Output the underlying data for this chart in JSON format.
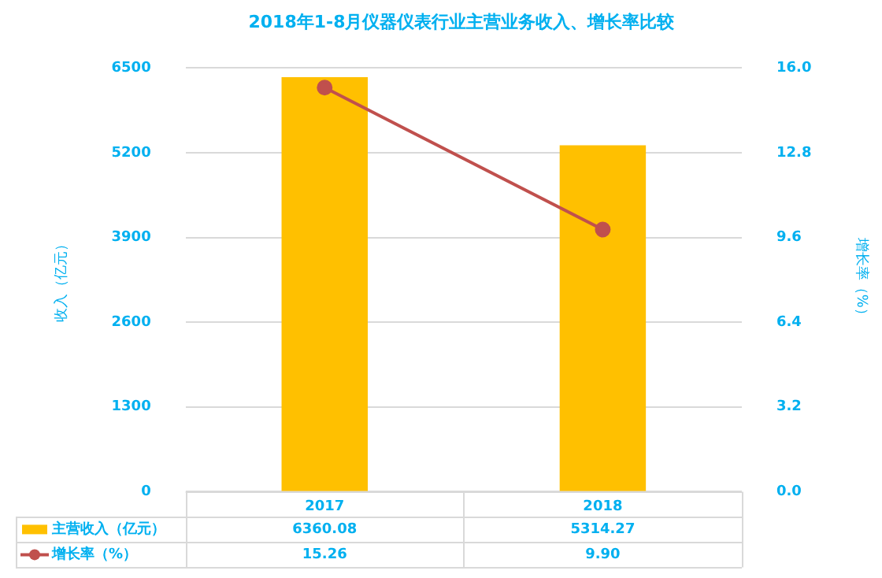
{
  "chart_data": {
    "type": "bar",
    "title": "2018年1-8月仪器仪表行业主营业务收入、增长率比较",
    "ylabel": "收入（亿元）",
    "y2label": "增长率（%）",
    "categories": [
      "2017",
      "2018"
    ],
    "series": [
      {
        "name": "主营收入（亿元）",
        "color": "#ffc000",
        "values": [
          6360.08,
          5314.27
        ],
        "value_labels": [
          "6360.08",
          "5314.27"
        ]
      },
      {
        "name": "增长率（%）",
        "type": "line",
        "axis": "y2",
        "color": "#c0504d",
        "values": [
          15.26,
          9.9
        ],
        "value_labels": [
          "15.26",
          "9.90"
        ],
        "marker": "circle"
      }
    ],
    "ylim": [
      0,
      6500
    ],
    "yticks": [
      0,
      1300,
      2600,
      3900,
      5200,
      6500
    ],
    "y2lim": [
      0,
      16
    ],
    "y2ticks": [
      {
        "value": 0,
        "label": "0.0"
      },
      {
        "value": 3.2,
        "label": "3.2"
      },
      {
        "value": 6.4,
        "label": "6.4"
      },
      {
        "value": 9.6,
        "label": "9.6"
      },
      {
        "value": 12.8,
        "label": "12.8"
      },
      {
        "value": 16,
        "label": "16.0"
      }
    ],
    "grid": "y",
    "legend": "bottom"
  }
}
